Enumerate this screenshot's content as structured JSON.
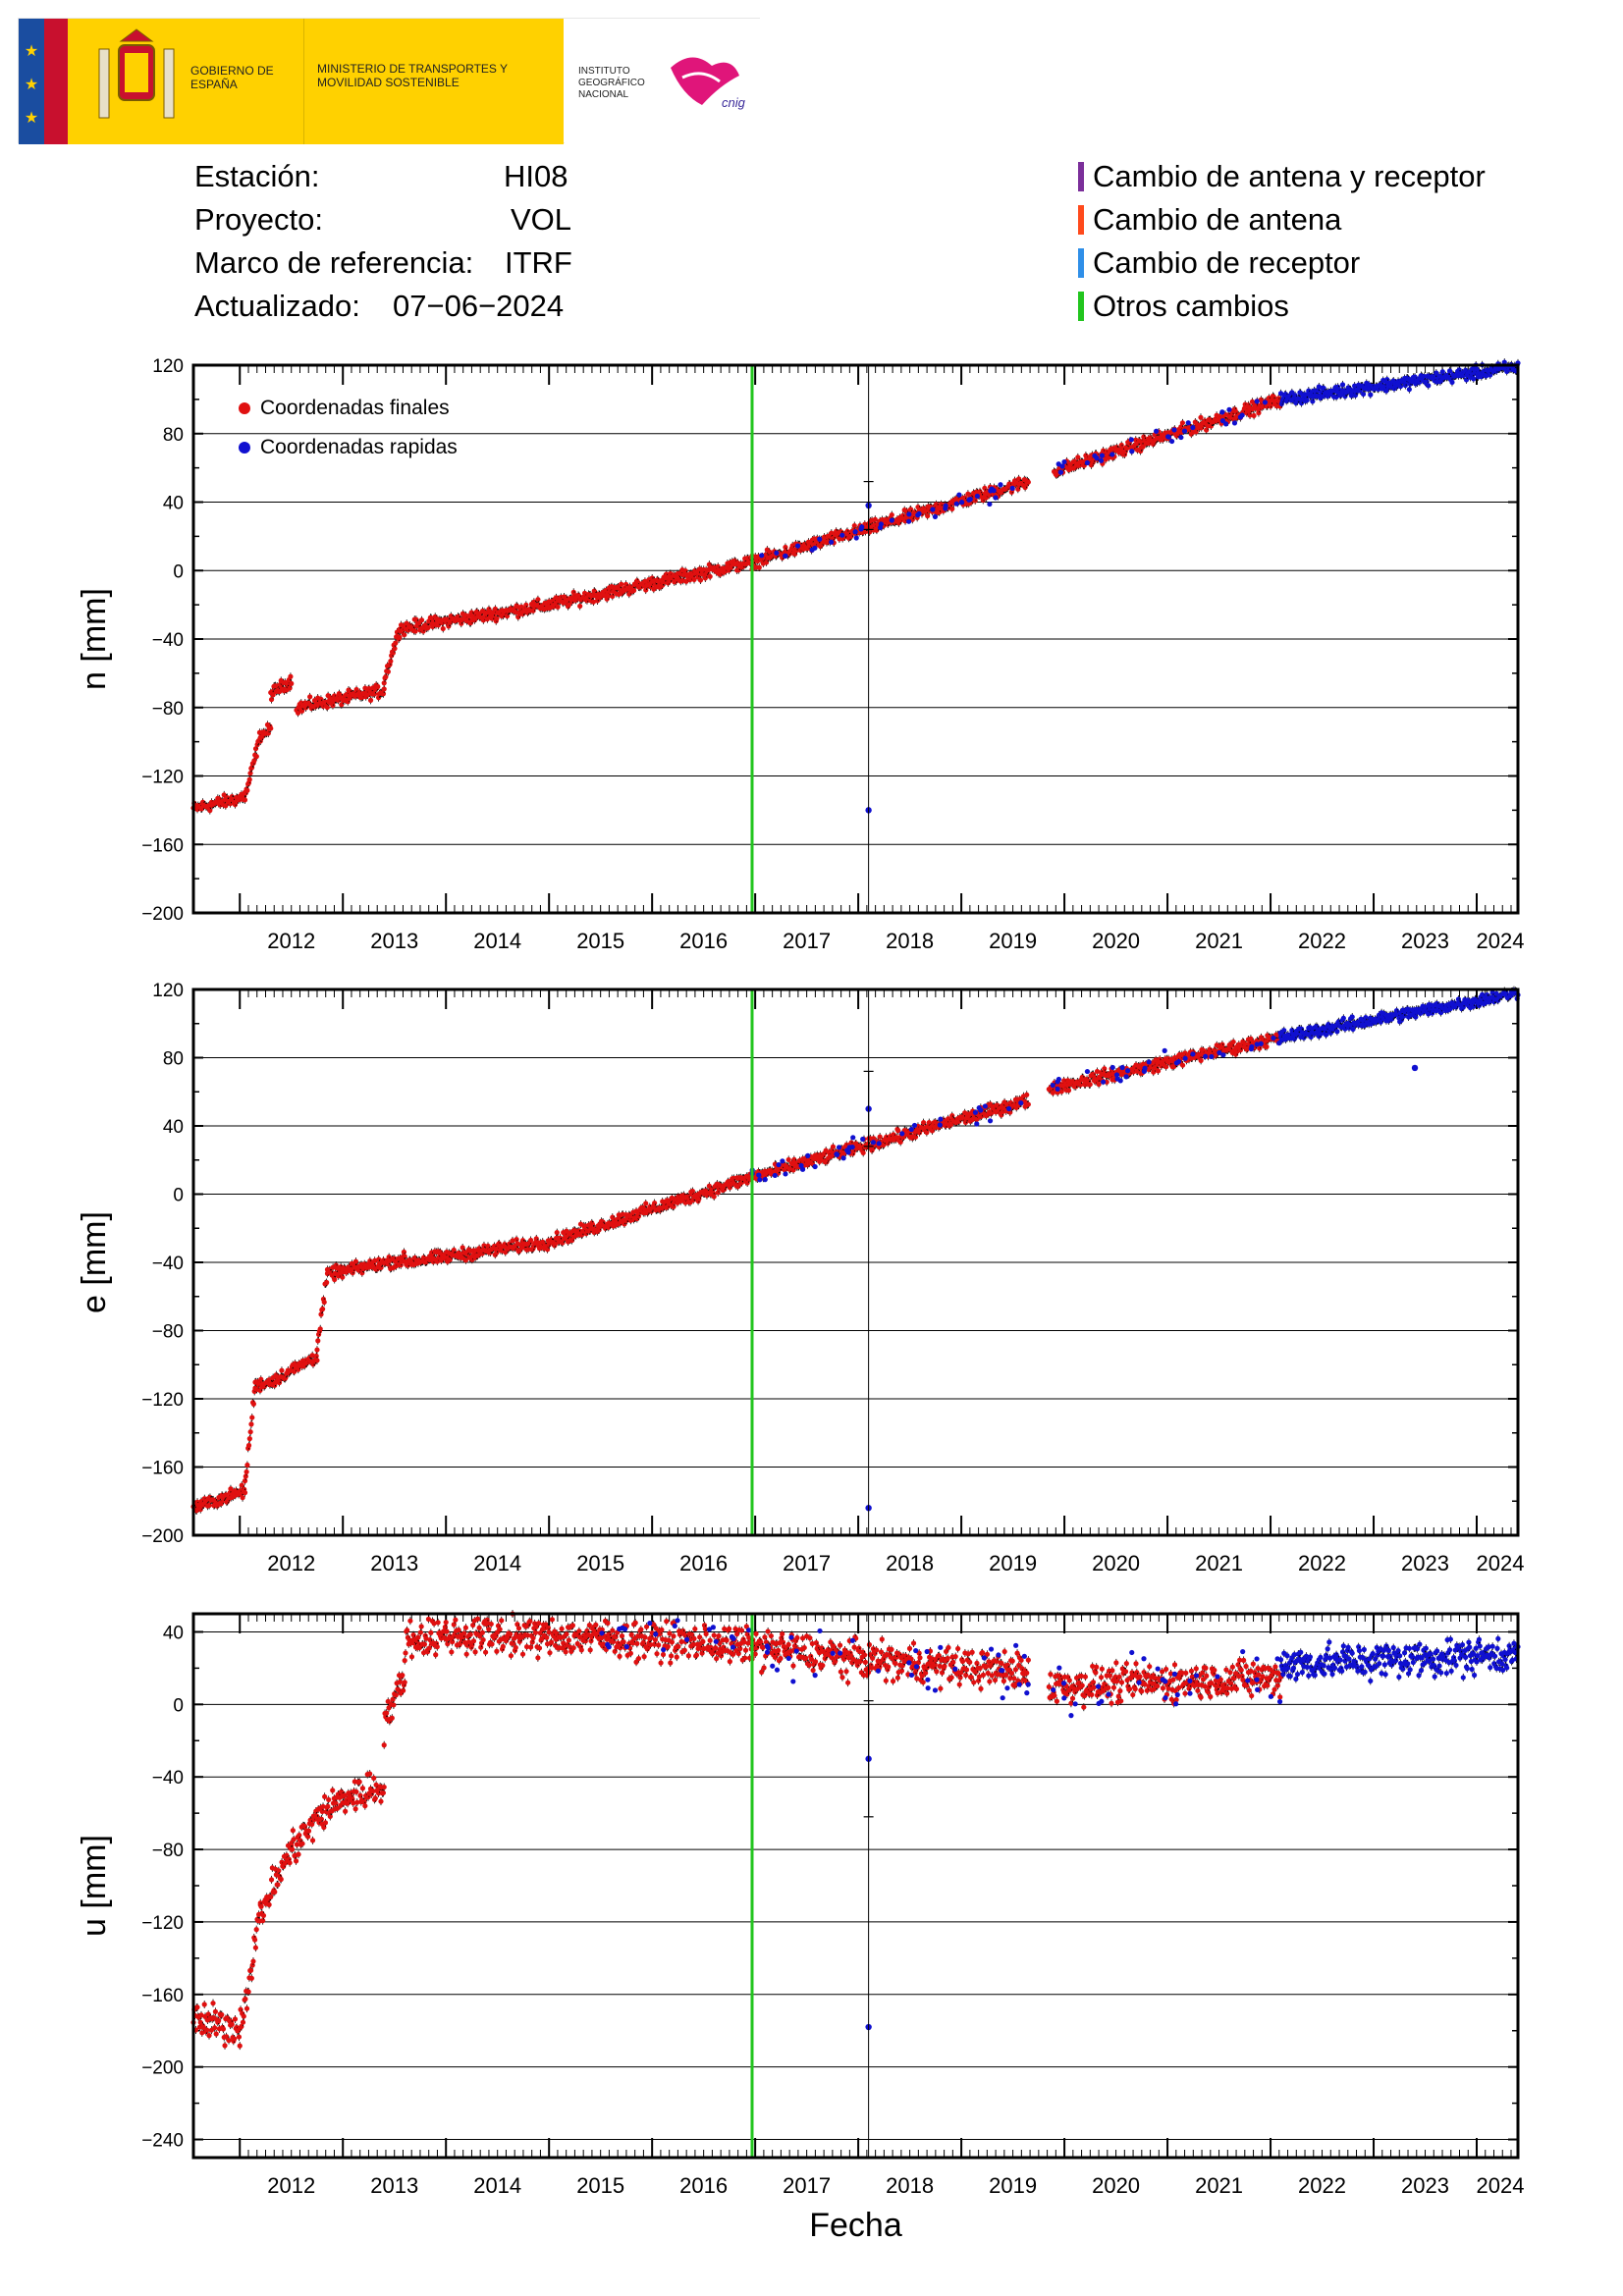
{
  "header": {
    "logos": {
      "gobierno": "GOBIERNO DE ESPAÑA",
      "ministerio": "MINISTERIO DE TRANSPORTES Y MOVILIDAD SOSTENIBLE",
      "ign": "INSTITUTO GEOGRÁFICO NACIONAL",
      "cnig": "cnig"
    },
    "info": [
      {
        "label": "Estación:",
        "value": "HI08"
      },
      {
        "label": "Proyecto:",
        "value": "VOL"
      },
      {
        "label": "Marco de referencia:",
        "value": "ITRF"
      },
      {
        "label": "Actualizado:",
        "value": "07−06−2024"
      }
    ],
    "change_legend": [
      {
        "label": "Cambio de antena y receptor",
        "color": "#7b2f9a"
      },
      {
        "label": "Cambio de antena",
        "color": "#ff4a1c"
      },
      {
        "label": "Cambio de receptor",
        "color": "#2f8fe8"
      },
      {
        "label": "Otros cambios",
        "color": "#22c51e"
      }
    ]
  },
  "colors": {
    "final": "#e01010",
    "rapid": "#1010d0",
    "change": "#22c51e",
    "grid": "#000000"
  },
  "chart_data": [
    {
      "type": "scatter",
      "ylabel": "n [mm]",
      "ylim": [
        -200,
        120
      ],
      "yticks": [
        -200,
        -160,
        -120,
        -80,
        -40,
        0,
        40,
        80,
        120
      ],
      "xlim": [
        2011.55,
        2024.4
      ],
      "xticks": [
        "2012",
        "2013",
        "2014",
        "2015",
        "2016",
        "2017",
        "2018",
        "2019",
        "2020",
        "2021",
        "2022",
        "2023",
        "2024"
      ],
      "legend": [
        {
          "label": "Coordenadas finales",
          "color": "#e01010"
        },
        {
          "label": "Coordenadas rapidas",
          "color": "#1010d0"
        }
      ],
      "events": [
        {
          "x": 2016.97,
          "type": "Otros cambios"
        }
      ],
      "outliers": [
        {
          "x": 2018.1,
          "y": 38,
          "err": 14,
          "series": "rapid"
        },
        {
          "x": 2018.1,
          "y": -140,
          "err": 0,
          "series": "rapid"
        }
      ],
      "series": [
        {
          "name": "Coordenadas finales",
          "segments": [
            {
              "x": [
                2011.55,
                2012.0,
                2012.05
              ],
              "y": [
                -139,
                -133,
                -131
              ]
            },
            {
              "x": [
                2012.05,
                2012.2,
                2012.3
              ],
              "y": [
                -133,
                -96,
                -93
              ]
            },
            {
              "x": [
                2012.3,
                2012.5
              ],
              "y": [
                -72,
                -64
              ]
            },
            {
              "x": [
                2012.55,
                2013.4
              ],
              "y": [
                -80,
                -70
              ]
            },
            {
              "x": [
                2013.4,
                2013.55,
                2015.0,
                2016.97,
                2019.65
              ],
              "y": [
                -64,
                -34,
                -20,
                5,
                52
              ]
            },
            {
              "x": [
                2019.9,
                2022.1
              ],
              "y": [
                58,
                100
              ]
            }
          ]
        },
        {
          "name": "Coordenadas rapidas",
          "segments": [
            {
              "x": [
                2022.1,
                2024.4
              ],
              "y": [
                100,
                119
              ]
            }
          ]
        }
      ]
    },
    {
      "type": "scatter",
      "ylabel": "e [mm]",
      "ylim": [
        -200,
        120
      ],
      "yticks": [
        -200,
        -160,
        -120,
        -80,
        -40,
        0,
        40,
        80,
        120
      ],
      "xlim": [
        2011.55,
        2024.4
      ],
      "xticks": [
        "2012",
        "2013",
        "2014",
        "2015",
        "2016",
        "2017",
        "2018",
        "2019",
        "2020",
        "2021",
        "2022",
        "2023",
        "2024"
      ],
      "events": [
        {
          "x": 2016.97,
          "type": "Otros cambios"
        }
      ],
      "outliers": [
        {
          "x": 2018.1,
          "y": 50,
          "err": 22,
          "series": "rapid"
        },
        {
          "x": 2018.1,
          "y": -184,
          "err": 0,
          "series": "rapid"
        },
        {
          "x": 2023.4,
          "y": 74,
          "err": 0,
          "series": "rapid"
        }
      ],
      "series": [
        {
          "name": "Coordenadas finales",
          "segments": [
            {
              "x": [
                2011.55,
                2012.05
              ],
              "y": [
                -184,
                -174
              ]
            },
            {
              "x": [
                2012.05,
                2012.15,
                2012.3
              ],
              "y": [
                -170,
                -112,
                -110
              ]
            },
            {
              "x": [
                2012.3,
                2012.75
              ],
              "y": [
                -110,
                -95
              ]
            },
            {
              "x": [
                2012.75,
                2012.85,
                2013.6
              ],
              "y": [
                -90,
                -47,
                -38
              ]
            },
            {
              "x": [
                2013.6,
                2015.0,
                2016.97,
                2019.65
              ],
              "y": [
                -40,
                -28,
                10,
                55
              ]
            },
            {
              "x": [
                2019.85,
                2022.1
              ],
              "y": [
                62,
                92
              ]
            }
          ]
        },
        {
          "name": "Coordenadas rapidas",
          "segments": [
            {
              "x": [
                2022.1,
                2024.4
              ],
              "y": [
                92,
                118
              ]
            }
          ]
        }
      ]
    },
    {
      "type": "scatter",
      "ylabel": "u [mm]",
      "xlabel": "Fecha",
      "ylim": [
        -250,
        50
      ],
      "yticks": [
        -240,
        -200,
        -160,
        -120,
        -80,
        -40,
        0,
        40
      ],
      "xlim": [
        2011.55,
        2024.4
      ],
      "xticks": [
        "2012",
        "2013",
        "2014",
        "2015",
        "2016",
        "2017",
        "2018",
        "2019",
        "2020",
        "2021",
        "2022",
        "2023",
        "2024"
      ],
      "events": [
        {
          "x": 2016.97,
          "type": "Otros cambios"
        }
      ],
      "outliers": [
        {
          "x": 2018.1,
          "y": -30,
          "err": 32,
          "series": "rapid"
        },
        {
          "x": 2018.1,
          "y": -178,
          "err": 0,
          "series": "rapid"
        }
      ],
      "series": [
        {
          "name": "Coordenadas finales",
          "segments": [
            {
              "x": [
                2011.55,
                2012.0
              ],
              "y": [
                -175,
                -178
              ]
            },
            {
              "x": [
                2012.0,
                2012.2,
                2012.5,
                2012.8,
                2013.0,
                2013.4
              ],
              "y": [
                -180,
                -115,
                -80,
                -60,
                -52,
                -45
              ]
            },
            {
              "x": [
                2013.4,
                2013.6
              ],
              "y": [
                -10,
                15
              ]
            },
            {
              "x": [
                2013.6,
                2014.0,
                2015.5,
                2016.97,
                2018.0,
                2019.65
              ],
              "y": [
                35,
                38,
                37,
                32,
                25,
                18
              ]
            },
            {
              "x": [
                2019.85,
                2022.1
              ],
              "y": [
                10,
                15
              ]
            }
          ]
        },
        {
          "name": "Coordenadas rapidas",
          "segments": [
            {
              "x": [
                2022.1,
                2024.4
              ],
              "y": [
                22,
                28
              ]
            }
          ]
        }
      ]
    }
  ]
}
